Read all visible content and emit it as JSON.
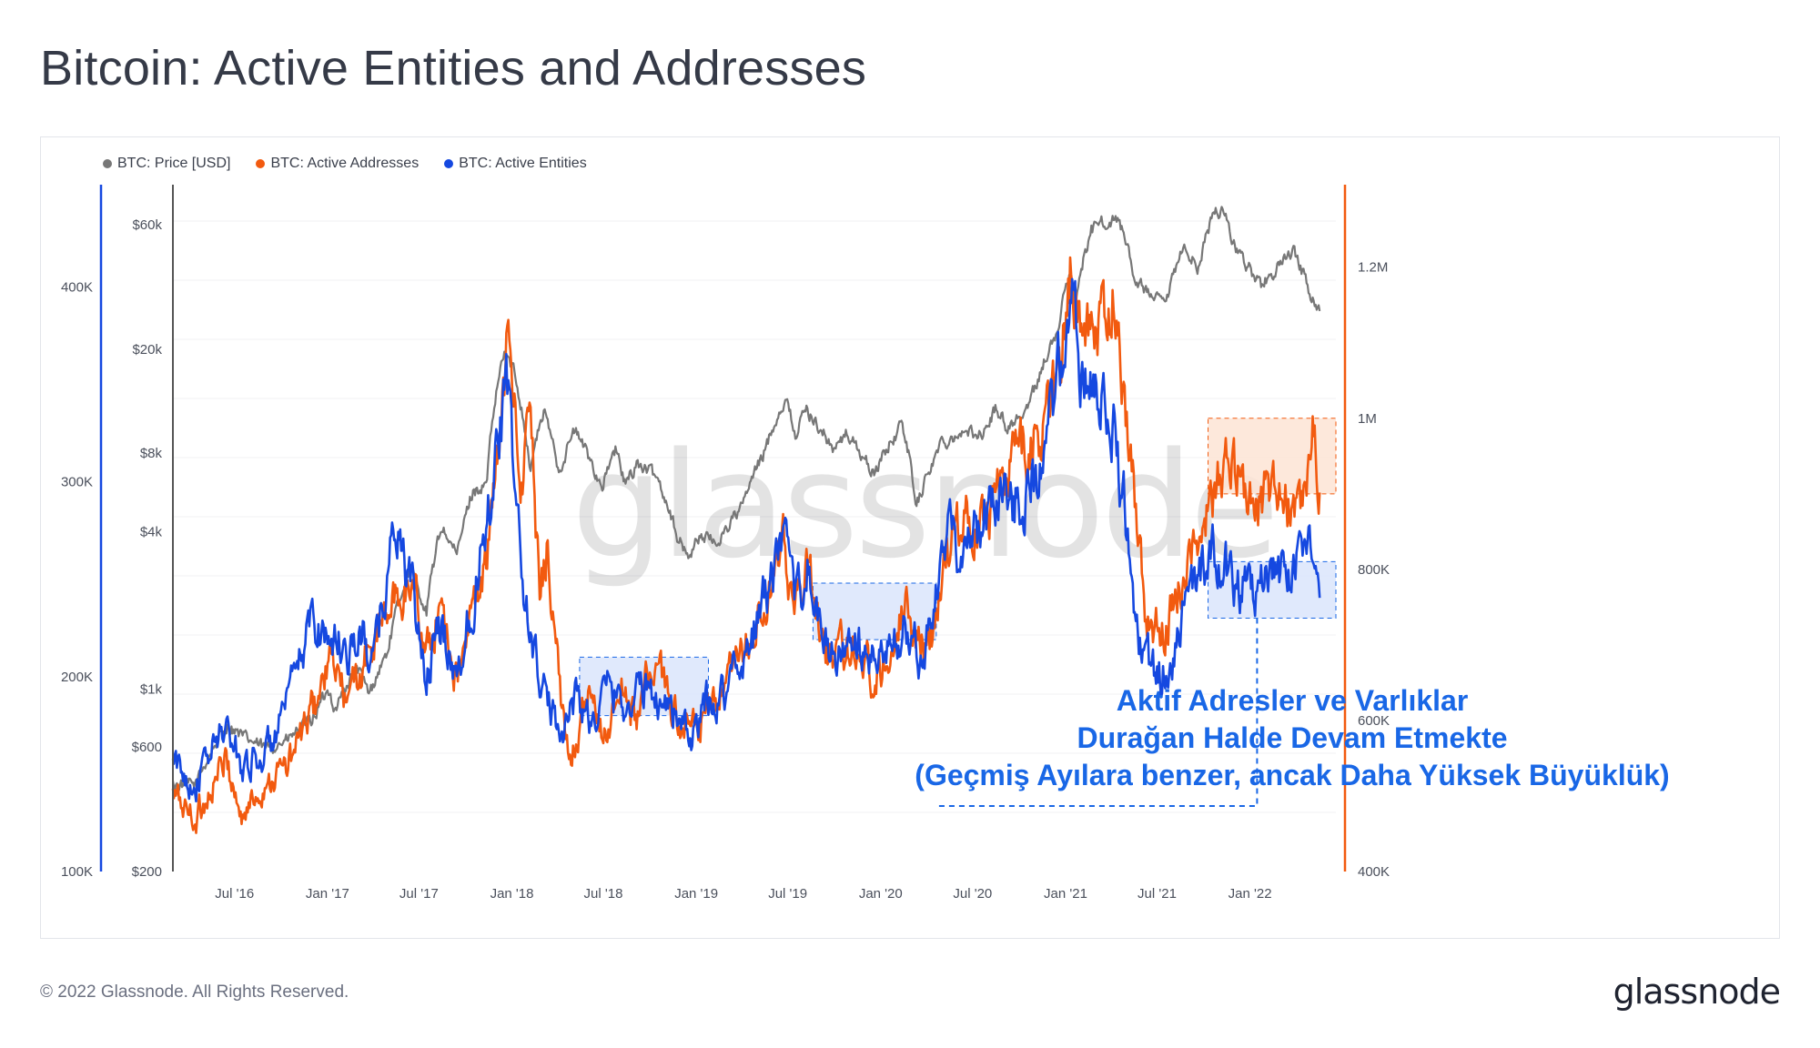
{
  "page": {
    "title": "Bitcoin: Active Entities and Addresses",
    "copyright": "© 2022 Glassnode. All Rights Reserved.",
    "logo_text": "glassnode",
    "watermark": "glassnode"
  },
  "annotation": {
    "lines": [
      "Aktif Adresler ve Varlıklar",
      "Durağan Halde Devam Etmekte",
      "(Geçmiş Ayılara benzer, ancak Daha Yüksek Büyüklük)"
    ],
    "color": "#1967e6"
  },
  "legend": [
    {
      "label": "BTC: Price [USD]",
      "color": "#777777"
    },
    {
      "label": "BTC: Active Addresses",
      "color": "#f25a0f"
    },
    {
      "label": "BTC: Active Entities",
      "color": "#1548e0"
    }
  ],
  "chart_data": {
    "type": "line",
    "x_axis": {
      "ticks": [
        "Jul '16",
        "Jan '17",
        "Jul '17",
        "Jan '18",
        "Jul '18",
        "Jan '19",
        "Jul '19",
        "Jan '20",
        "Jul '20",
        "Jan '21",
        "Jul '21",
        "Jan '22"
      ],
      "range": [
        "2016-03-01",
        "2022-06-20"
      ]
    },
    "axes": {
      "entities": {
        "position": "far-left",
        "ticks": [
          "100K",
          "200K",
          "300K",
          "400K"
        ],
        "range": [
          100000,
          445000
        ],
        "color": "#1548e0"
      },
      "price": {
        "position": "left",
        "scale": "log",
        "ticks": [
          "$200",
          "$600",
          "$1k",
          "$4k",
          "$8k",
          "$20k",
          "$60k"
        ],
        "range": [
          200,
          75000
        ],
        "color": "#555555"
      },
      "addresses": {
        "position": "right",
        "ticks": [
          "400K",
          "600K",
          "800K",
          "1M",
          "1.2M"
        ],
        "range": [
          400000,
          1290000
        ],
        "color": "#f25a0f"
      }
    },
    "series": [
      {
        "name": "BTC: Price [USD]",
        "color": "#777777",
        "axis": "price",
        "points": [
          [
            "2016-03-01",
            430
          ],
          [
            "2016-04-15",
            430
          ],
          [
            "2016-06-18",
            730
          ],
          [
            "2016-07-15",
            660
          ],
          [
            "2016-09-01",
            590
          ],
          [
            "2016-10-15",
            640
          ],
          [
            "2016-12-01",
            760
          ],
          [
            "2017-01-05",
            1000
          ],
          [
            "2017-01-15",
            830
          ],
          [
            "2017-03-01",
            1200
          ],
          [
            "2017-03-25",
            950
          ],
          [
            "2017-05-01",
            1400
          ],
          [
            "2017-06-12",
            2900
          ],
          [
            "2017-07-16",
            1950
          ],
          [
            "2017-08-15",
            4200
          ],
          [
            "2017-09-14",
            3200
          ],
          [
            "2017-10-15",
            5700
          ],
          [
            "2017-11-12",
            6000
          ],
          [
            "2017-12-17",
            19500
          ],
          [
            "2018-01-05",
            16500
          ],
          [
            "2018-02-06",
            6900
          ],
          [
            "2018-03-05",
            11500
          ],
          [
            "2018-04-05",
            6800
          ],
          [
            "2018-05-05",
            9800
          ],
          [
            "2018-06-28",
            5900
          ],
          [
            "2018-07-25",
            8200
          ],
          [
            "2018-08-14",
            6000
          ],
          [
            "2018-09-05",
            7300
          ],
          [
            "2018-10-15",
            6500
          ],
          [
            "2018-11-25",
            3800
          ],
          [
            "2018-12-15",
            3200
          ],
          [
            "2019-01-10",
            3900
          ],
          [
            "2019-02-10",
            3600
          ],
          [
            "2019-04-02",
            5000
          ],
          [
            "2019-05-15",
            8000
          ],
          [
            "2019-06-26",
            12900
          ],
          [
            "2019-07-17",
            9400
          ],
          [
            "2019-08-06",
            11800
          ],
          [
            "2019-09-30",
            8200
          ],
          [
            "2019-10-26",
            9500
          ],
          [
            "2019-12-18",
            6600
          ],
          [
            "2020-02-13",
            10300
          ],
          [
            "2020-03-12",
            5000
          ],
          [
            "2020-05-01",
            8800
          ],
          [
            "2020-06-01",
            9500
          ],
          [
            "2020-07-25",
            9600
          ],
          [
            "2020-08-17",
            12000
          ],
          [
            "2020-09-08",
            10000
          ],
          [
            "2020-10-20",
            11900
          ],
          [
            "2020-11-25",
            19000
          ],
          [
            "2020-12-17",
            23000
          ],
          [
            "2021-01-08",
            40000
          ],
          [
            "2021-01-22",
            31000
          ],
          [
            "2021-02-21",
            57000
          ],
          [
            "2021-03-13",
            61000
          ],
          [
            "2021-04-14",
            63000
          ],
          [
            "2021-05-19",
            37000
          ],
          [
            "2021-06-22",
            31000
          ],
          [
            "2021-07-20",
            30000
          ],
          [
            "2021-08-23",
            49000
          ],
          [
            "2021-09-21",
            41000
          ],
          [
            "2021-10-20",
            66000
          ],
          [
            "2021-11-10",
            68000
          ],
          [
            "2021-12-05",
            47000
          ],
          [
            "2022-01-24",
            35000
          ],
          [
            "2022-03-28",
            47000
          ],
          [
            "2022-05-12",
            28000
          ],
          [
            "2022-05-20",
            29000
          ]
        ]
      },
      {
        "name": "BTC: Active Addresses",
        "color": "#f25a0f",
        "axis": "addresses",
        "points": [
          [
            "2016-03-01",
            500000
          ],
          [
            "2016-04-15",
            470000
          ],
          [
            "2016-06-15",
            550000
          ],
          [
            "2016-07-15",
            470000
          ],
          [
            "2016-09-01",
            520000
          ],
          [
            "2016-10-15",
            540000
          ],
          [
            "2016-12-01",
            610000
          ],
          [
            "2017-01-10",
            680000
          ],
          [
            "2017-02-10",
            620000
          ],
          [
            "2017-04-01",
            700000
          ],
          [
            "2017-05-15",
            760000
          ],
          [
            "2017-06-25",
            780000
          ],
          [
            "2017-07-15",
            680000
          ],
          [
            "2017-08-15",
            760000
          ],
          [
            "2017-09-15",
            650000
          ],
          [
            "2017-10-25",
            770000
          ],
          [
            "2017-11-20",
            840000
          ],
          [
            "2017-12-15",
            1050000
          ],
          [
            "2017-12-30",
            1140000
          ],
          [
            "2018-01-15",
            880000
          ],
          [
            "2018-02-05",
            1010000
          ],
          [
            "2018-02-25",
            760000
          ],
          [
            "2018-03-12",
            840000
          ],
          [
            "2018-04-10",
            600000
          ],
          [
            "2018-04-25",
            560000
          ],
          [
            "2018-06-01",
            620000
          ],
          [
            "2018-07-05",
            580000
          ],
          [
            "2018-08-05",
            640000
          ],
          [
            "2018-09-05",
            600000
          ],
          [
            "2018-10-05",
            680000
          ],
          [
            "2018-11-15",
            620000
          ],
          [
            "2018-12-15",
            580000
          ],
          [
            "2019-01-20",
            600000
          ],
          [
            "2019-03-15",
            660000
          ],
          [
            "2019-04-15",
            700000
          ],
          [
            "2019-05-25",
            760000
          ],
          [
            "2019-06-25",
            830000
          ],
          [
            "2019-07-10",
            770000
          ],
          [
            "2019-08-10",
            790000
          ],
          [
            "2019-09-10",
            700000
          ],
          [
            "2019-10-15",
            690000
          ],
          [
            "2019-11-15",
            700000
          ],
          [
            "2019-12-20",
            650000
          ],
          [
            "2020-01-20",
            700000
          ],
          [
            "2020-02-15",
            760000
          ],
          [
            "2020-03-20",
            700000
          ],
          [
            "2020-04-15",
            720000
          ],
          [
            "2020-05-10",
            820000
          ],
          [
            "2020-06-15",
            880000
          ],
          [
            "2020-07-10",
            860000
          ],
          [
            "2020-08-20",
            900000
          ],
          [
            "2020-09-20",
            970000
          ],
          [
            "2020-10-15",
            960000
          ],
          [
            "2020-11-25",
            1000000
          ],
          [
            "2020-12-20",
            1060000
          ],
          [
            "2021-01-10",
            1200000
          ],
          [
            "2021-02-01",
            1100000
          ],
          [
            "2021-02-20",
            1150000
          ],
          [
            "2021-03-15",
            1120000
          ],
          [
            "2021-04-10",
            1170000
          ],
          [
            "2021-05-01",
            1000000
          ],
          [
            "2021-05-15",
            920000
          ],
          [
            "2021-06-10",
            740000
          ],
          [
            "2021-07-10",
            710000
          ],
          [
            "2021-08-15",
            780000
          ],
          [
            "2021-09-20",
            840000
          ],
          [
            "2021-10-20",
            900000
          ],
          [
            "2021-11-15",
            930000
          ],
          [
            "2021-12-15",
            920000
          ],
          [
            "2022-01-15",
            880000
          ],
          [
            "2022-02-20",
            920000
          ],
          [
            "2022-03-20",
            880000
          ],
          [
            "2022-04-20",
            890000
          ],
          [
            "2022-05-08",
            980000
          ],
          [
            "2022-05-20",
            900000
          ]
        ]
      },
      {
        "name": "BTC: Active Entities",
        "color": "#1548e0",
        "axis": "entities",
        "points": [
          [
            "2016-03-01",
            155000
          ],
          [
            "2016-04-15",
            145000
          ],
          [
            "2016-06-10",
            175000
          ],
          [
            "2016-07-15",
            155000
          ],
          [
            "2016-09-01",
            160000
          ],
          [
            "2016-10-15",
            185000
          ],
          [
            "2016-12-01",
            230000
          ],
          [
            "2017-01-05",
            220000
          ],
          [
            "2017-02-10",
            215000
          ],
          [
            "2017-03-15",
            220000
          ],
          [
            "2017-04-01",
            205000
          ],
          [
            "2017-05-15",
            280000
          ],
          [
            "2017-06-15",
            245000
          ],
          [
            "2017-07-15",
            200000
          ],
          [
            "2017-08-15",
            225000
          ],
          [
            "2017-09-15",
            200000
          ],
          [
            "2017-10-15",
            240000
          ],
          [
            "2017-11-10",
            280000
          ],
          [
            "2017-12-20",
            350000
          ],
          [
            "2018-01-05",
            305000
          ],
          [
            "2018-01-25",
            240000
          ],
          [
            "2018-02-20",
            205000
          ],
          [
            "2018-03-20",
            180000
          ],
          [
            "2018-04-10",
            175000
          ],
          [
            "2018-05-10",
            190000
          ],
          [
            "2018-06-10",
            175000
          ],
          [
            "2018-07-10",
            195000
          ],
          [
            "2018-08-15",
            185000
          ],
          [
            "2018-09-15",
            195000
          ],
          [
            "2018-10-15",
            190000
          ],
          [
            "2018-11-15",
            185000
          ],
          [
            "2018-12-20",
            165000
          ],
          [
            "2019-01-20",
            185000
          ],
          [
            "2019-02-20",
            190000
          ],
          [
            "2019-03-20",
            205000
          ],
          [
            "2019-04-15",
            215000
          ],
          [
            "2019-05-15",
            240000
          ],
          [
            "2019-06-25",
            265000
          ],
          [
            "2019-07-10",
            240000
          ],
          [
            "2019-08-10",
            255000
          ],
          [
            "2019-09-10",
            215000
          ],
          [
            "2019-10-15",
            210000
          ],
          [
            "2019-11-15",
            215000
          ],
          [
            "2019-12-20",
            205000
          ],
          [
            "2020-01-20",
            215000
          ],
          [
            "2020-02-15",
            225000
          ],
          [
            "2020-03-20",
            210000
          ],
          [
            "2020-04-15",
            230000
          ],
          [
            "2020-05-10",
            275000
          ],
          [
            "2020-06-15",
            265000
          ],
          [
            "2020-07-10",
            275000
          ],
          [
            "2020-08-20",
            300000
          ],
          [
            "2020-09-20",
            290000
          ],
          [
            "2020-10-15",
            295000
          ],
          [
            "2020-11-25",
            315000
          ],
          [
            "2020-12-20",
            355000
          ],
          [
            "2021-01-10",
            395000
          ],
          [
            "2021-02-01",
            350000
          ],
          [
            "2021-02-20",
            360000
          ],
          [
            "2021-03-15",
            340000
          ],
          [
            "2021-04-10",
            325000
          ],
          [
            "2021-05-01",
            280000
          ],
          [
            "2021-05-20",
            215000
          ],
          [
            "2021-06-15",
            205000
          ],
          [
            "2021-07-10",
            200000
          ],
          [
            "2021-08-15",
            225000
          ],
          [
            "2021-09-20",
            250000
          ],
          [
            "2021-10-20",
            265000
          ],
          [
            "2021-11-15",
            255000
          ],
          [
            "2021-12-15",
            245000
          ],
          [
            "2022-01-15",
            240000
          ],
          [
            "2022-02-20",
            255000
          ],
          [
            "2022-03-20",
            250000
          ],
          [
            "2022-04-20",
            265000
          ],
          [
            "2022-05-08",
            255000
          ],
          [
            "2022-05-20",
            250000
          ]
        ]
      }
    ],
    "highlight_boxes": [
      {
        "from": "2018-05-15",
        "to": "2019-01-25",
        "axis": "entities",
        "lower": 180000,
        "upper": 210000,
        "fill": "#dbe5fb",
        "stroke": "#1967e6"
      },
      {
        "from": "2019-08-20",
        "to": "2020-04-20",
        "axis": "entities",
        "lower": 219000,
        "upper": 248000,
        "fill": "#dbe5fb",
        "stroke": "#1967e6"
      },
      {
        "from": "2021-10-10",
        "to": "2022-06-20",
        "axis": "addresses",
        "lower": 900000,
        "upper": 1000000,
        "fill": "#fde4d5",
        "stroke": "#f25a0f"
      },
      {
        "from": "2021-10-10",
        "to": "2022-06-20",
        "axis": "entities",
        "lower": 230000,
        "upper": 259000,
        "fill": "#dbe5fb",
        "stroke": "#1967e6"
      }
    ]
  }
}
